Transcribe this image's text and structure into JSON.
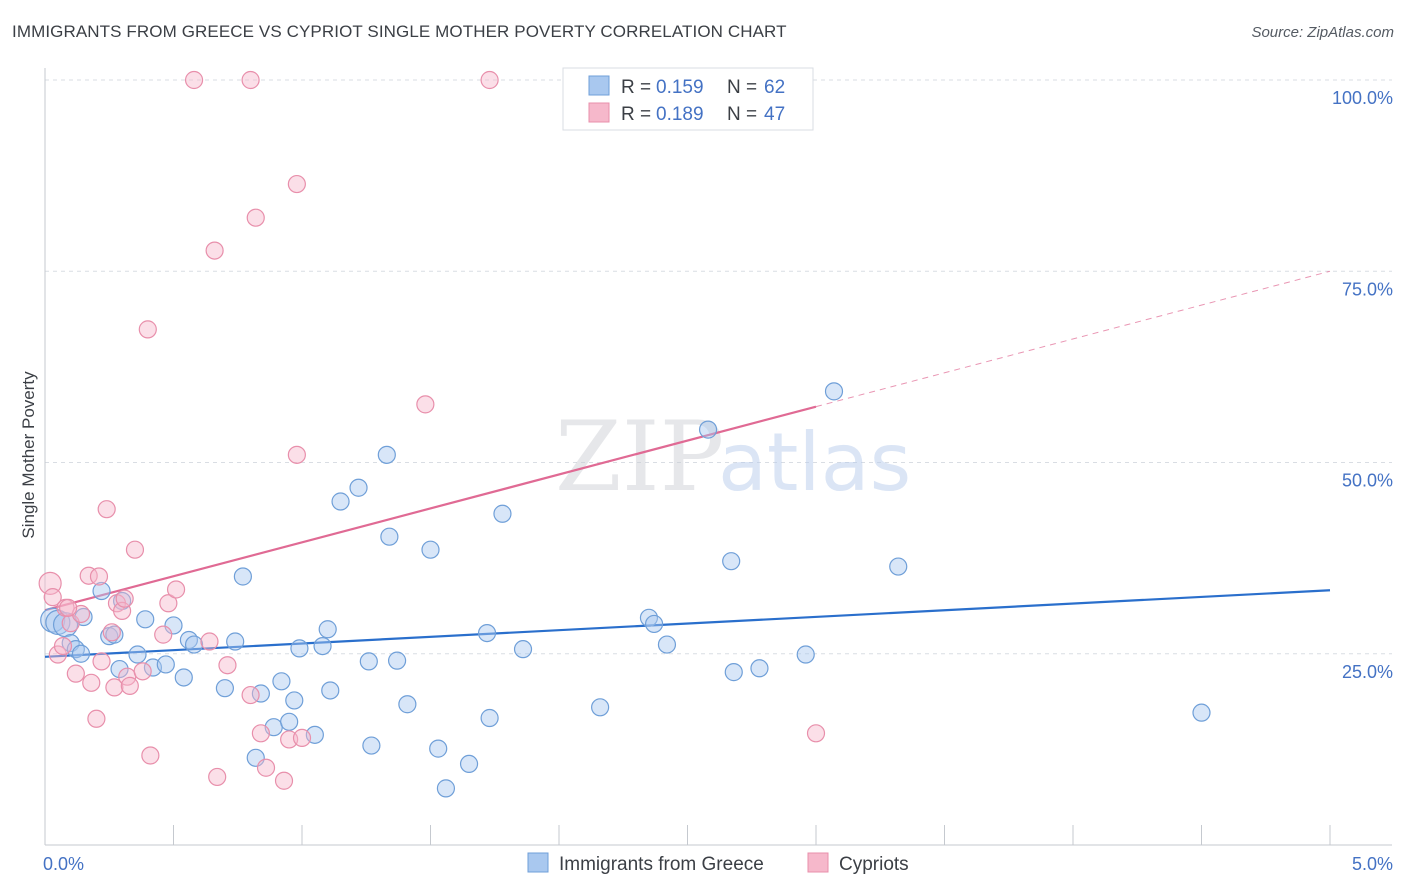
{
  "title": "IMMIGRANTS FROM GREECE VS CYPRIOT SINGLE MOTHER POVERTY CORRELATION CHART",
  "source": "Source: ZipAtlas.com",
  "watermark": {
    "zip": "ZIP",
    "atlas": "atlas"
  },
  "colors": {
    "blue_fill": "#a9c8ef",
    "blue_stroke": "#6f9fd8",
    "blue_line": "#2a6fcc",
    "pink_fill": "#f6b8cb",
    "pink_stroke": "#e88fab",
    "pink_line": "#e06a94",
    "grid": "#d9dde3",
    "axis_text": "#4472c4"
  },
  "legend_top": {
    "r_label": "R =",
    "n_label": "N =",
    "rows": [
      {
        "series": "blue",
        "r": "0.159",
        "n": "62"
      },
      {
        "series": "pink",
        "r": "0.189",
        "n": "47"
      }
    ]
  },
  "chart_data": {
    "type": "scatter",
    "title": "IMMIGRANTS FROM GREECE VS CYPRIOT SINGLE MOTHER POVERTY CORRELATION CHART",
    "xlabel": "",
    "ylabel": "Single Mother Poverty",
    "xlim": [
      0,
      5
    ],
    "ylim": [
      0,
      100
    ],
    "x_tick_labels": [
      {
        "value": 0,
        "label": "0.0%"
      },
      {
        "value": 5,
        "label": "5.0%"
      }
    ],
    "y_tick_labels": [
      {
        "value": 25,
        "label": "25.0%"
      },
      {
        "value": 50,
        "label": "50.0%"
      },
      {
        "value": 75,
        "label": "75.0%"
      },
      {
        "value": 100,
        "label": "100.0%"
      }
    ],
    "grid": true,
    "legend_placement": "top-center",
    "series": [
      {
        "name": "Immigrants from Greece",
        "color": "#a9c8ef",
        "r": 0.159,
        "n": 62,
        "trend": {
          "x": [
            0,
            5
          ],
          "y": [
            24.6,
            33.3
          ]
        },
        "points": [
          [
            0.03,
            29.4
          ],
          [
            0.05,
            29.1
          ],
          [
            0.08,
            28.8
          ],
          [
            0.1,
            26.4
          ],
          [
            0.12,
            25.6
          ],
          [
            0.14,
            25.0
          ],
          [
            0.22,
            33.2
          ],
          [
            0.25,
            27.3
          ],
          [
            0.27,
            27.5
          ],
          [
            0.29,
            23.0
          ],
          [
            0.36,
            24.9
          ],
          [
            0.39,
            29.5
          ],
          [
            0.42,
            23.2
          ],
          [
            0.47,
            23.6
          ],
          [
            0.5,
            28.7
          ],
          [
            0.54,
            21.9
          ],
          [
            0.56,
            26.8
          ],
          [
            0.58,
            26.2
          ],
          [
            0.7,
            20.5
          ],
          [
            0.74,
            26.6
          ],
          [
            0.77,
            35.1
          ],
          [
            0.82,
            11.4
          ],
          [
            0.84,
            19.8
          ],
          [
            0.89,
            15.4
          ],
          [
            0.92,
            21.4
          ],
          [
            0.95,
            16.1
          ],
          [
            0.97,
            18.9
          ],
          [
            0.99,
            25.7
          ],
          [
            1.05,
            14.4
          ],
          [
            1.08,
            26.0
          ],
          [
            1.1,
            28.2
          ],
          [
            1.11,
            20.2
          ],
          [
            1.15,
            44.9
          ],
          [
            1.22,
            46.7
          ],
          [
            1.26,
            24.0
          ],
          [
            1.27,
            13.0
          ],
          [
            1.33,
            51.0
          ],
          [
            1.34,
            40.3
          ],
          [
            1.37,
            24.1
          ],
          [
            1.41,
            18.4
          ],
          [
            1.5,
            38.6
          ],
          [
            1.53,
            12.6
          ],
          [
            1.56,
            7.4
          ],
          [
            1.65,
            10.6
          ],
          [
            1.72,
            27.7
          ],
          [
            1.73,
            16.6
          ],
          [
            1.78,
            43.3
          ],
          [
            1.86,
            25.6
          ],
          [
            2.16,
            18.0
          ],
          [
            2.35,
            29.7
          ],
          [
            2.37,
            28.9
          ],
          [
            2.42,
            26.2
          ],
          [
            2.58,
            54.3
          ],
          [
            2.67,
            37.1
          ],
          [
            2.68,
            22.6
          ],
          [
            2.78,
            23.1
          ],
          [
            2.96,
            24.9
          ],
          [
            3.07,
            59.3
          ],
          [
            3.32,
            36.4
          ],
          [
            4.5,
            17.3
          ],
          [
            0.3,
            31.9
          ],
          [
            0.15,
            29.8
          ]
        ]
      },
      {
        "name": "Cypriots",
        "color": "#f6b8cb",
        "r": 0.189,
        "n": 47,
        "trend": {
          "x": [
            0,
            3.0
          ],
          "y": [
            30.7,
            57.3
          ],
          "dashed_to": {
            "x": 5,
            "y": 75.0
          }
        },
        "points": [
          [
            0.02,
            34.2
          ],
          [
            0.03,
            32.4
          ],
          [
            0.05,
            24.9
          ],
          [
            0.07,
            26.0
          ],
          [
            0.08,
            31.0
          ],
          [
            0.1,
            29.0
          ],
          [
            0.12,
            22.4
          ],
          [
            0.14,
            30.2
          ],
          [
            0.17,
            35.2
          ],
          [
            0.18,
            21.2
          ],
          [
            0.2,
            16.5
          ],
          [
            0.21,
            35.1
          ],
          [
            0.24,
            43.9
          ],
          [
            0.26,
            27.8
          ],
          [
            0.27,
            20.6
          ],
          [
            0.28,
            31.6
          ],
          [
            0.3,
            30.6
          ],
          [
            0.31,
            32.2
          ],
          [
            0.32,
            22.0
          ],
          [
            0.33,
            20.8
          ],
          [
            0.35,
            38.6
          ],
          [
            0.38,
            22.7
          ],
          [
            0.4,
            67.4
          ],
          [
            0.41,
            11.7
          ],
          [
            0.46,
            27.5
          ],
          [
            0.48,
            31.6
          ],
          [
            0.51,
            33.4
          ],
          [
            0.58,
            100.0
          ],
          [
            0.64,
            26.6
          ],
          [
            0.66,
            77.7
          ],
          [
            0.67,
            8.9
          ],
          [
            0.71,
            23.5
          ],
          [
            0.8,
            100.0
          ],
          [
            0.8,
            19.6
          ],
          [
            0.82,
            82.0
          ],
          [
            0.84,
            14.6
          ],
          [
            0.86,
            10.1
          ],
          [
            0.93,
            8.4
          ],
          [
            0.95,
            13.8
          ],
          [
            0.98,
            86.4
          ],
          [
            0.98,
            51.0
          ],
          [
            1.0,
            14.0
          ],
          [
            1.48,
            57.6
          ],
          [
            1.73,
            100.0
          ],
          [
            3.0,
            14.6
          ],
          [
            0.09,
            31.0
          ],
          [
            0.22,
            24.0
          ]
        ]
      }
    ]
  },
  "bottom_legend": [
    {
      "series": "blue",
      "label": "Immigrants from Greece"
    },
    {
      "series": "pink",
      "label": "Cypriots"
    }
  ]
}
